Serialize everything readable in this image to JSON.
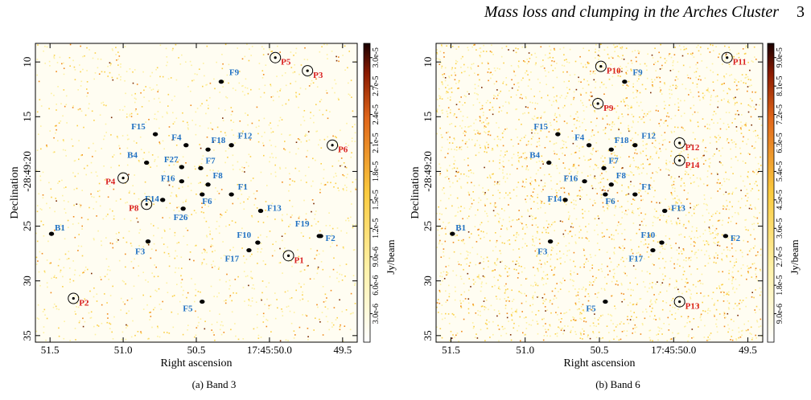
{
  "header": {
    "title": "Mass loss and clumping in the Arches Cluster",
    "page_number": "3"
  },
  "colors": {
    "blue_label": "#2272c3",
    "red_label": "#d92020"
  },
  "panels": [
    {
      "caption": "(a) Band 3",
      "ylabel": "Declination",
      "xlabel": "Right ascension",
      "y_ticks": [
        "10",
        "15",
        "-28:49:20",
        "25",
        "30",
        "35"
      ],
      "x_ticks": [
        "51.5",
        "51.0",
        "50.5",
        "17:45:50.0",
        "49.5"
      ],
      "colorbar_label": "Jy/beam",
      "colorbar_ticks": [
        "3.0e-6",
        "6.0e-6",
        "9.0e-6",
        "1.2e-5",
        "1.5e-5",
        "1.8e-5",
        "2.1e-5",
        "2.4e-5",
        "2.7e-5",
        "3.0e-5"
      ],
      "sources_blue": [
        {
          "label": "F9",
          "ra": 50.33,
          "dec": 11.8
        },
        {
          "label": "F15",
          "ra": 50.78,
          "dec": 16.6
        },
        {
          "label": "F4",
          "ra": 50.57,
          "dec": 17.6
        },
        {
          "label": "F18",
          "ra": 50.42,
          "dec": 18.0
        },
        {
          "label": "F12",
          "ra": 50.26,
          "dec": 17.6
        },
        {
          "label": "B4",
          "ra": 50.84,
          "dec": 19.2
        },
        {
          "label": "F27",
          "ra": 50.6,
          "dec": 19.6
        },
        {
          "label": "F7",
          "ra": 50.47,
          "dec": 19.7
        },
        {
          "label": "F16",
          "ra": 50.6,
          "dec": 20.9
        },
        {
          "label": "F8",
          "ra": 50.42,
          "dec": 21.2
        },
        {
          "label": "F14",
          "ra": 50.73,
          "dec": 22.6
        },
        {
          "label": "F26",
          "ra": 50.59,
          "dec": 23.4
        },
        {
          "label": "F6",
          "ra": 50.46,
          "dec": 22.1
        },
        {
          "label": "F1",
          "ra": 50.26,
          "dec": 22.1
        },
        {
          "label": "F13",
          "ra": 50.06,
          "dec": 23.6
        },
        {
          "label": "B1",
          "ra": 51.49,
          "dec": 25.7
        },
        {
          "label": "F3",
          "ra": 50.83,
          "dec": 26.4
        },
        {
          "label": "F10",
          "ra": 50.08,
          "dec": 26.5
        },
        {
          "label": "F19",
          "ra": 49.66,
          "dec": 25.9
        },
        {
          "label": "F2",
          "ra": 49.65,
          "dec": 25.9
        },
        {
          "label": "F17",
          "ra": 50.14,
          "dec": 27.2
        },
        {
          "label": "F5",
          "ra": 50.46,
          "dec": 31.9
        }
      ],
      "sources_red": [
        {
          "label": "P5",
          "ra": 49.96,
          "dec": 9.6
        },
        {
          "label": "P3",
          "ra": 49.74,
          "dec": 10.8
        },
        {
          "label": "P6",
          "ra": 49.57,
          "dec": 17.6
        },
        {
          "label": "P4",
          "ra": 51.0,
          "dec": 20.6
        },
        {
          "label": "P8",
          "ra": 50.84,
          "dec": 23.0
        },
        {
          "label": "P1",
          "ra": 49.87,
          "dec": 27.7
        },
        {
          "label": "P2",
          "ra": 51.34,
          "dec": 31.6
        }
      ]
    },
    {
      "caption": "(b) Band 6",
      "ylabel": "Declination",
      "xlabel": "Right ascension",
      "y_ticks": [
        "10",
        "15",
        "-28:49:20",
        "25",
        "30",
        "35"
      ],
      "x_ticks": [
        "51.5",
        "51.0",
        "50.5",
        "17:45:50.0",
        "49.5"
      ],
      "colorbar_label": "Jy/beam",
      "colorbar_ticks": [
        "9.0e-6",
        "1.8e-5",
        "2.7e-5",
        "3.6e-5",
        "4.5e-5",
        "5.4e-5",
        "6.3e-5",
        "7.2e-5",
        "8.1e-5",
        "9.0e-5"
      ],
      "sources_blue": [
        {
          "label": "F9",
          "ra": 50.33,
          "dec": 11.8
        },
        {
          "label": "F15",
          "ra": 50.78,
          "dec": 16.6
        },
        {
          "label": "F4",
          "ra": 50.57,
          "dec": 17.6
        },
        {
          "label": "F18",
          "ra": 50.42,
          "dec": 18.0
        },
        {
          "label": "F12",
          "ra": 50.26,
          "dec": 17.6
        },
        {
          "label": "B4",
          "ra": 50.84,
          "dec": 19.2
        },
        {
          "label": "F7",
          "ra": 50.47,
          "dec": 19.7
        },
        {
          "label": "F16",
          "ra": 50.6,
          "dec": 20.9
        },
        {
          "label": "F8",
          "ra": 50.42,
          "dec": 21.2
        },
        {
          "label": "F14",
          "ra": 50.73,
          "dec": 22.6
        },
        {
          "label": "F6",
          "ra": 50.46,
          "dec": 22.1
        },
        {
          "label": "F1",
          "ra": 50.26,
          "dec": 22.1
        },
        {
          "label": "F13",
          "ra": 50.06,
          "dec": 23.6
        },
        {
          "label": "B1",
          "ra": 51.49,
          "dec": 25.7
        },
        {
          "label": "F3",
          "ra": 50.83,
          "dec": 26.4
        },
        {
          "label": "F2",
          "ra": 49.65,
          "dec": 25.9
        },
        {
          "label": "F10",
          "ra": 50.08,
          "dec": 26.5
        },
        {
          "label": "F17",
          "ra": 50.14,
          "dec": 27.2
        },
        {
          "label": "F5",
          "ra": 50.46,
          "dec": 31.9
        }
      ],
      "sources_red": [
        {
          "label": "P10",
          "ra": 50.49,
          "dec": 10.4
        },
        {
          "label": "P11",
          "ra": 49.64,
          "dec": 9.6
        },
        {
          "label": "P9",
          "ra": 50.51,
          "dec": 13.8
        },
        {
          "label": "P12",
          "ra": 49.96,
          "dec": 17.4
        },
        {
          "label": "P14",
          "ra": 49.96,
          "dec": 19.0
        },
        {
          "label": "P13",
          "ra": 49.96,
          "dec": 31.9
        }
      ]
    }
  ]
}
